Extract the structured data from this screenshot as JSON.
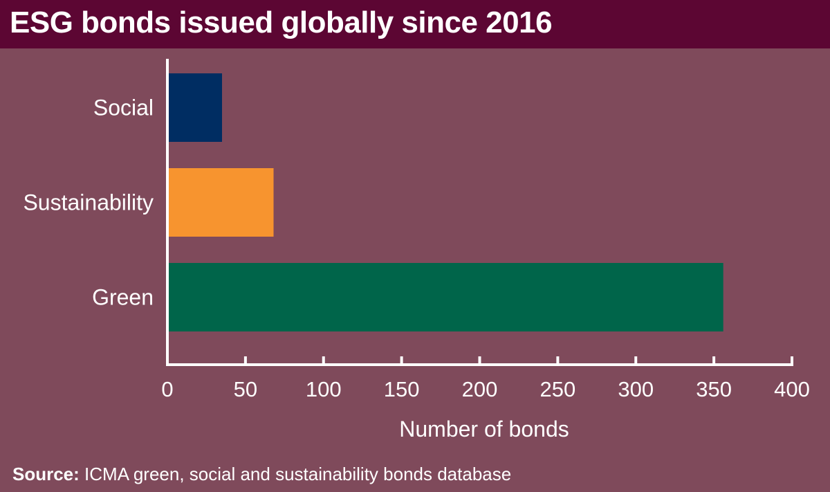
{
  "title": "ESG bonds issued globally since 2016",
  "source_label": "Source:",
  "source_text": " ICMA green, social and sustainability bonds database",
  "colors": {
    "background": "#7f4a5b",
    "title_bar": "#5c0633"
  },
  "chart_data": {
    "type": "bar",
    "orientation": "horizontal",
    "title": "ESG bonds issued globally since 2016",
    "xlabel": "Number of bonds",
    "ylabel": "",
    "xlim": [
      0,
      400
    ],
    "xticks": [
      0,
      50,
      100,
      150,
      200,
      250,
      300,
      350,
      400
    ],
    "grid": false,
    "categories": [
      "Social",
      "Sustainability",
      "Green"
    ],
    "values": [
      35,
      68,
      356
    ],
    "bar_colors": [
      "#002d62",
      "#f7942f",
      "#00654a"
    ]
  }
}
